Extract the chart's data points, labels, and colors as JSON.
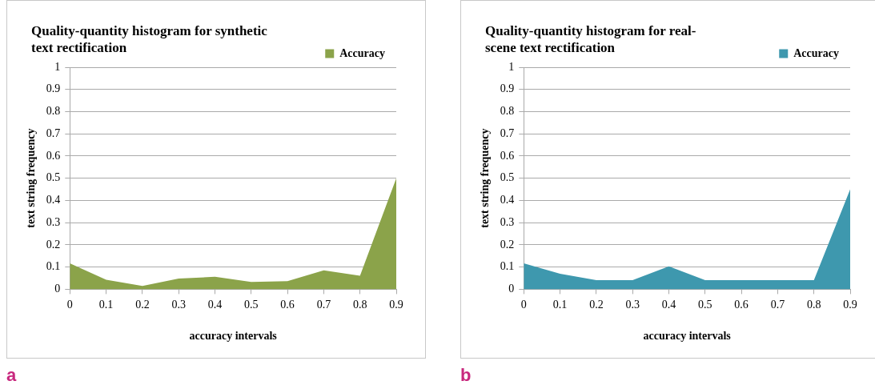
{
  "chart_data": [
    {
      "type": "area",
      "title": "Quality-quantity histogram for synthetic text rectification",
      "xlabel": "accuracy intervals",
      "ylabel": "text string frequency",
      "categories": [
        "0",
        "0.1",
        "0.2",
        "0.3",
        "0.4",
        "0.5",
        "0.6",
        "0.7",
        "0.8",
        "0.9"
      ],
      "series": [
        {
          "name": "Accuracy",
          "color": "#8ba34a",
          "values": [
            0.117,
            0.043,
            0.015,
            0.048,
            0.056,
            0.033,
            0.037,
            0.085,
            0.061,
            0.5
          ]
        }
      ],
      "ylim": [
        0,
        1
      ],
      "yticks": [
        0,
        0.1,
        0.2,
        0.3,
        0.4,
        0.5,
        0.6,
        0.7,
        0.8,
        0.9,
        1
      ],
      "grid": "y",
      "legend": "top right",
      "annotations": [
        "a"
      ]
    },
    {
      "type": "area",
      "title": "Quality-quantity histogram for real-scene text rectification",
      "xlabel": "accuracy intervals",
      "ylabel": "text string frequency",
      "categories": [
        "0",
        "0.1",
        "0.2",
        "0.3",
        "0.4",
        "0.5",
        "0.6",
        "0.7",
        "0.8",
        "0.9"
      ],
      "series": [
        {
          "name": "Accuracy",
          "color": "#3e98ae",
          "values": [
            0.117,
            0.07,
            0.041,
            0.041,
            0.103,
            0.041,
            0.041,
            0.041,
            0.041,
            0.45
          ]
        }
      ],
      "ylim": [
        0,
        1
      ],
      "yticks": [
        0,
        0.1,
        0.2,
        0.3,
        0.4,
        0.5,
        0.6,
        0.7,
        0.8,
        0.9,
        1
      ],
      "grid": "y",
      "legend": "top right",
      "annotations": [
        "b"
      ]
    }
  ]
}
